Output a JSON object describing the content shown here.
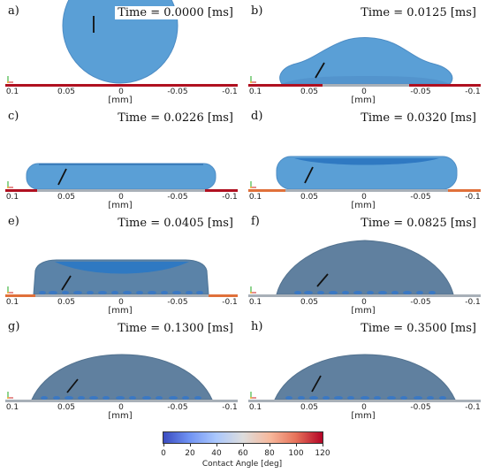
{
  "units": "[mm]",
  "ticks": [
    "0.1",
    "0.05",
    "0",
    "-0.05",
    "-0.1"
  ],
  "colorbar": {
    "title": "Contact Angle [deg]",
    "ticks": [
      "0",
      "20",
      "40",
      "60",
      "80",
      "100",
      "120"
    ],
    "range": [
      0,
      120
    ],
    "colors": [
      "#3b4cc0",
      "#6f92f3",
      "#aac7fd",
      "#dddddd",
      "#f7b89c",
      "#e7745b",
      "#b40426"
    ]
  },
  "colors": {
    "droplet": "#5a9fd6",
    "droplet_edge": "#4d8cc4",
    "droplet_dark": "#5f7f9e",
    "substrate_wet": "#b01020",
    "substrate_orange": "#e0703a",
    "substrate_gray": "#a8b0b8",
    "bubble": "#3a78c4"
  },
  "panels": [
    {
      "label": "a)",
      "time": "Time = 0.0000 [ms]",
      "shape": "sphere"
    },
    {
      "label": "b)",
      "time": "Time = 0.0125 [ms]",
      "shape": "spreading"
    },
    {
      "label": "c)",
      "time": "Time = 0.0226 [ms]",
      "shape": "pancake"
    },
    {
      "label": "d)",
      "time": "Time = 0.0320 [ms]",
      "shape": "pancake-thick"
    },
    {
      "label": "e)",
      "time": "Time = 0.0405 [ms]",
      "shape": "recoil"
    },
    {
      "label": "f)",
      "time": "Time = 0.0825 [ms]",
      "shape": "tall-cap"
    },
    {
      "label": "g)",
      "time": "Time = 0.1300 [ms]",
      "shape": "wide-cap"
    },
    {
      "label": "h)",
      "time": "Time = 0.3500 [ms]",
      "shape": "wide-cap-right"
    }
  ]
}
